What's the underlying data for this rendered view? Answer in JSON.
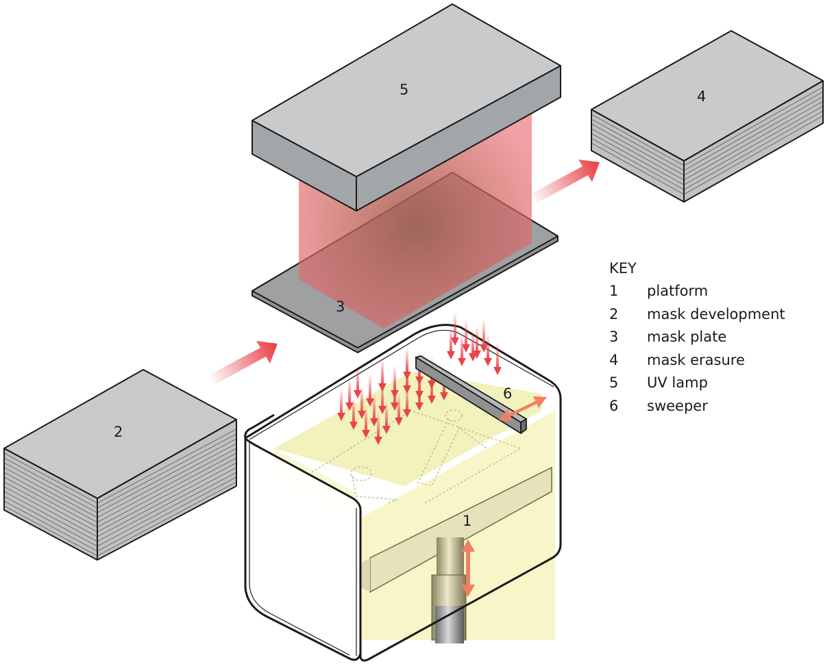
{
  "labels": {
    "platform": "1",
    "mask_development": "2",
    "mask_plate": "3",
    "mask_erasure": "4",
    "uv_lamp": "5",
    "sweeper": "6"
  },
  "key": {
    "title": "KEY",
    "items": [
      {
        "num": "1",
        "text": "platform"
      },
      {
        "num": "2",
        "text": "mask development"
      },
      {
        "num": "3",
        "text": "mask plate"
      },
      {
        "num": "4",
        "text": "mask erasure"
      },
      {
        "num": "5",
        "text": "UV lamp"
      },
      {
        "num": "6",
        "text": "sweeper"
      }
    ]
  },
  "colors": {
    "box_top": "#c8cacc",
    "box_side": "#a3a6a8",
    "plate": "#9ea0a2",
    "uv_light": "#e8686e",
    "resin": "#f7f5c4",
    "platform": "#e6e2bb",
    "arrow": "#e8444a",
    "motion_arrow": "#ef8060"
  }
}
